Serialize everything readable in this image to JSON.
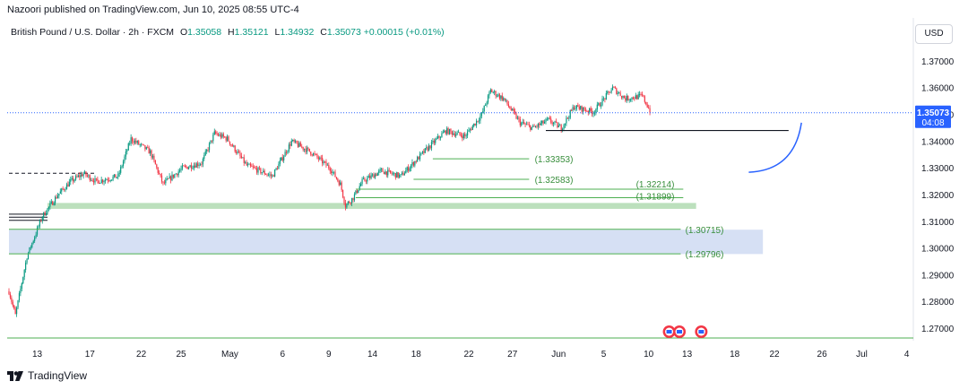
{
  "header": {
    "published": "Nazoori published on TradingView.com, Jun 10, 2025 08:55 UTC-4",
    "symbol": "British Pound / U.S. Dollar · 2h · FXCM",
    "open_label": "O",
    "open": "1.35058",
    "high_label": "H",
    "high": "1.35121",
    "low_label": "L",
    "low": "1.34932",
    "close_label": "C",
    "close": "1.35073",
    "change": "+0.00015 (+0.01%)"
  },
  "currency": "USD",
  "brand": "TradingView",
  "price_badge": {
    "price": "1.35073",
    "countdown": "04:08"
  },
  "colors": {
    "up": "#089981",
    "down": "#f23645",
    "price_line": "#2962ff",
    "level_green": "#4caf50",
    "zone_green": "#a5d6a7",
    "zone_blue": "#c5d3f0",
    "arrow_blue": "#2962ff"
  },
  "chart_data": {
    "type": "candlestick",
    "instrument": "British Pound / U.S. Dollar",
    "timeframe": "2h",
    "ylim": [
      1.2655,
      1.3768
    ],
    "y_ticks": [
      "1.27000",
      "1.28000",
      "1.29000",
      "1.30000",
      "1.31000",
      "1.32000",
      "1.33000",
      "1.34000",
      "1.35000",
      "1.36000",
      "1.37000"
    ],
    "y_tick_values": [
      1.27,
      1.28,
      1.29,
      1.3,
      1.31,
      1.32,
      1.33,
      1.34,
      1.35,
      1.36,
      1.37
    ],
    "x_ticks": [
      "13",
      "17",
      "22",
      "25",
      "May",
      "6",
      "9",
      "14",
      "18",
      "22",
      "27",
      "Jun",
      "5",
      "10",
      "13",
      "18",
      "22",
      "26",
      "Jul",
      "4"
    ],
    "x_tick_index": [
      22,
      63,
      103,
      134,
      172,
      213,
      249,
      283,
      317,
      358,
      392,
      428,
      463,
      498,
      528,
      565,
      596,
      633,
      664,
      699
    ],
    "last_index": 499,
    "price_path": [
      [
        0,
        1.284
      ],
      [
        5,
        1.275
      ],
      [
        14,
        1.297
      ],
      [
        26,
        1.312
      ],
      [
        38,
        1.32
      ],
      [
        48,
        1.325
      ],
      [
        58,
        1.328
      ],
      [
        68,
        1.325
      ],
      [
        85,
        1.327
      ],
      [
        95,
        1.341
      ],
      [
        110,
        1.336
      ],
      [
        120,
        1.324
      ],
      [
        135,
        1.33
      ],
      [
        150,
        1.332
      ],
      [
        160,
        1.343
      ],
      [
        170,
        1.341
      ],
      [
        185,
        1.331
      ],
      [
        205,
        1.327
      ],
      [
        220,
        1.34
      ],
      [
        235,
        1.336
      ],
      [
        250,
        1.33
      ],
      [
        258,
        1.324
      ],
      [
        262,
        1.316
      ],
      [
        268,
        1.319
      ],
      [
        275,
        1.325
      ],
      [
        290,
        1.329
      ],
      [
        305,
        1.327
      ],
      [
        325,
        1.337
      ],
      [
        340,
        1.344
      ],
      [
        355,
        1.342
      ],
      [
        368,
        1.35
      ],
      [
        375,
        1.359
      ],
      [
        385,
        1.356
      ],
      [
        398,
        1.347
      ],
      [
        408,
        1.345
      ],
      [
        420,
        1.348
      ],
      [
        430,
        1.345
      ],
      [
        440,
        1.353
      ],
      [
        455,
        1.351
      ],
      [
        470,
        1.36
      ],
      [
        480,
        1.356
      ],
      [
        493,
        1.357
      ],
      [
        500,
        1.3507
      ]
    ],
    "levels": [
      {
        "label": "(1.33353)",
        "value": 1.33353,
        "from_index": 330,
        "to_index": 405
      },
      {
        "label": "(1.32583)",
        "value": 1.32583,
        "from_index": 315,
        "to_index": 405
      },
      {
        "label": "(1.32214)",
        "value": 1.32214,
        "from_index": 270,
        "to_index": 525
      },
      {
        "label": "(1.31899)",
        "value": 1.31899,
        "from_index": 270,
        "to_index": 525
      },
      {
        "label": "(1.30715)",
        "value": 1.30715,
        "from_index": 0,
        "to_index": 523
      },
      {
        "label": "(1.29796)",
        "value": 1.29796,
        "from_index": 0,
        "to_index": 523
      }
    ],
    "zones": [
      {
        "name": "green-zone",
        "from": 1.3148,
        "to": 1.317,
        "from_index": 30,
        "to_index": 535
      },
      {
        "name": "blue-zone",
        "from": 1.2979,
        "to": 1.307,
        "from_index": 0,
        "to_index": 587
      }
    ],
    "support_line": {
      "value": 1.3441,
      "from_index": 418,
      "to_index": 607
    },
    "dashed_line": {
      "value": 1.3281,
      "from_index": 0,
      "to_index": 68
    },
    "black_levels": [
      {
        "value": 1.3128,
        "from_index": 0,
        "to_index": 30
      },
      {
        "value": 1.3117,
        "from_index": 0,
        "to_index": 30
      },
      {
        "value": 1.3105,
        "from_index": 0,
        "to_index": 30
      }
    ],
    "projection": {
      "from": [
        576,
        1.3285
      ],
      "to": [
        617,
        1.347
      ]
    },
    "bottom_line": {
      "value": 1.2665
    },
    "events": [
      {
        "index": 514
      },
      {
        "index": 522
      },
      {
        "index": 539
      }
    ]
  }
}
